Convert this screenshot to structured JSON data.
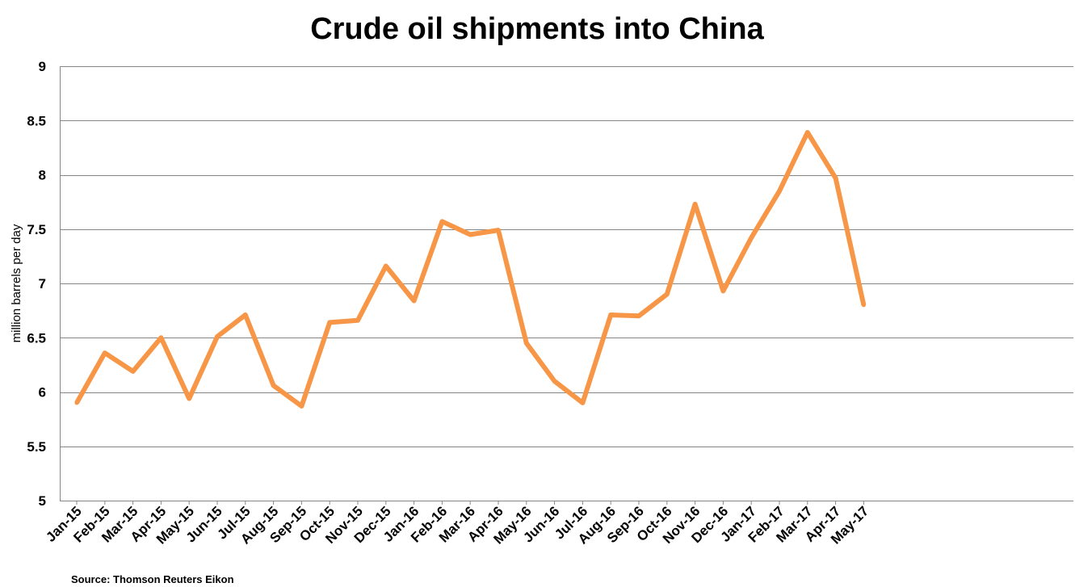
{
  "chart_data": {
    "type": "line",
    "title": "Crude oil shipments into China",
    "xlabel": "",
    "ylabel": "million barrels per day",
    "source": "Source: Thomson Reuters Eikon",
    "ylim": [
      5,
      9
    ],
    "yticks": [
      "5",
      "5.5",
      "6",
      "6.5",
      "7",
      "7.5",
      "8",
      "8.5",
      "9"
    ],
    "ytick_values": [
      5,
      5.5,
      6,
      6.5,
      7,
      7.5,
      8,
      8.5,
      9
    ],
    "grid": true,
    "legend": "none",
    "categories": [
      "Jan-15",
      "Feb-15",
      "Mar-15",
      "Apr-15",
      "May-15",
      "Jun-15",
      "Jul-15",
      "Aug-15",
      "Sep-15",
      "Oct-15",
      "Nov-15",
      "Dec-15",
      "Jan-16",
      "Feb-16",
      "Mar-16",
      "Apr-16",
      "May-16",
      "Jun-16",
      "Jul-16",
      "Aug-16",
      "Sep-16",
      "Oct-16",
      "Nov-16",
      "Dec-16",
      "Jan-17",
      "Feb-17",
      "Mar-17",
      "Apr-17",
      "May-17"
    ],
    "series": [
      {
        "color": "#F79646",
        "values": [
          5.9,
          6.36,
          6.19,
          6.5,
          5.94,
          6.51,
          6.71,
          6.06,
          5.87,
          6.64,
          6.66,
          7.16,
          6.84,
          7.57,
          7.45,
          7.49,
          6.45,
          6.1,
          5.9,
          6.71,
          6.7,
          6.9,
          7.73,
          6.93,
          7.42,
          7.85,
          8.39,
          7.97,
          6.8
        ]
      }
    ],
    "colors": {
      "line": "#F79646",
      "grid": "#868686",
      "axis": "#868686"
    }
  }
}
